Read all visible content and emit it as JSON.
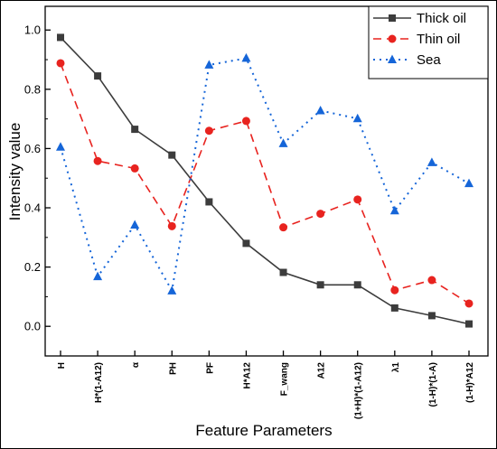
{
  "chart_data": {
    "type": "line",
    "categories": [
      "H",
      "H*(1-A12)",
      "α",
      "PH",
      "PF",
      "H*A12",
      "F_wang",
      "A12",
      "(1+H)*(1-A12)",
      "λ1",
      "(1-H)*(1-A)",
      "(1-H)*A12"
    ],
    "series": [
      {
        "name": "Thick oil",
        "color": "#3c3c3c",
        "marker": "square",
        "dash": "solid",
        "values": [
          0.975,
          0.845,
          0.665,
          0.578,
          0.42,
          0.28,
          0.182,
          0.14,
          0.14,
          0.062,
          0.036,
          0.008
        ]
      },
      {
        "name": "Thin oil",
        "color": "#e8231f",
        "marker": "circle",
        "dash": "dashed",
        "values": [
          0.888,
          0.558,
          0.533,
          0.338,
          0.66,
          0.693,
          0.334,
          0.38,
          0.428,
          0.122,
          0.156,
          0.077
        ]
      },
      {
        "name": "Sea",
        "color": "#1565d8",
        "marker": "triangle",
        "dash": "dotted",
        "values": [
          0.605,
          0.168,
          0.342,
          0.12,
          0.882,
          0.905,
          0.617,
          0.728,
          0.701,
          0.39,
          0.553,
          0.482
        ]
      }
    ],
    "xlabel": "Feature Parameters",
    "ylabel": "Intensity value",
    "ylim": [
      -0.1,
      1.08
    ],
    "yticks": [
      "0.0",
      "0.2",
      "0.4",
      "0.6",
      "0.8",
      "1.0"
    ],
    "legend_position": "top-right",
    "grid": false
  }
}
